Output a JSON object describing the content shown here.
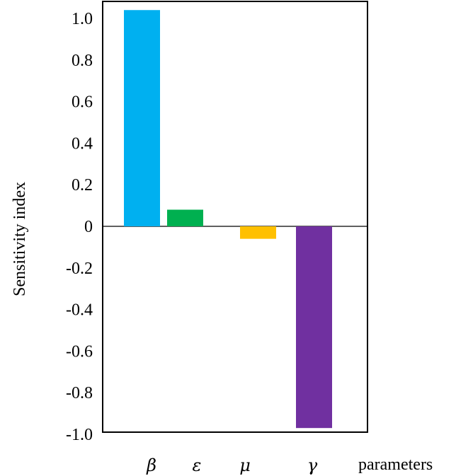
{
  "chart_data": {
    "type": "bar",
    "title": "",
    "xlabel": "parameters",
    "ylabel": "Sensitivity index",
    "categories": [
      "β",
      "ε",
      "μ",
      "γ"
    ],
    "values": [
      1.04,
      0.08,
      -0.06,
      -0.97
    ],
    "colors": [
      "#00b0f0",
      "#00b050",
      "#ffc000",
      "#7030a0"
    ],
    "ylim": [
      -1.0,
      1.0
    ],
    "yticks": [
      1.0,
      0.8,
      0.6,
      0.4,
      0.2,
      0,
      -0.2,
      -0.4,
      -0.6,
      -0.8,
      -1.0
    ],
    "ytick_labels": [
      "1.0",
      "0.8",
      "0.6",
      "0.4",
      "0.2",
      "0",
      "-0.2",
      "-0.4",
      "-0.6",
      "-0.8",
      "-1.0"
    ],
    "grid": false,
    "legend": false
  }
}
